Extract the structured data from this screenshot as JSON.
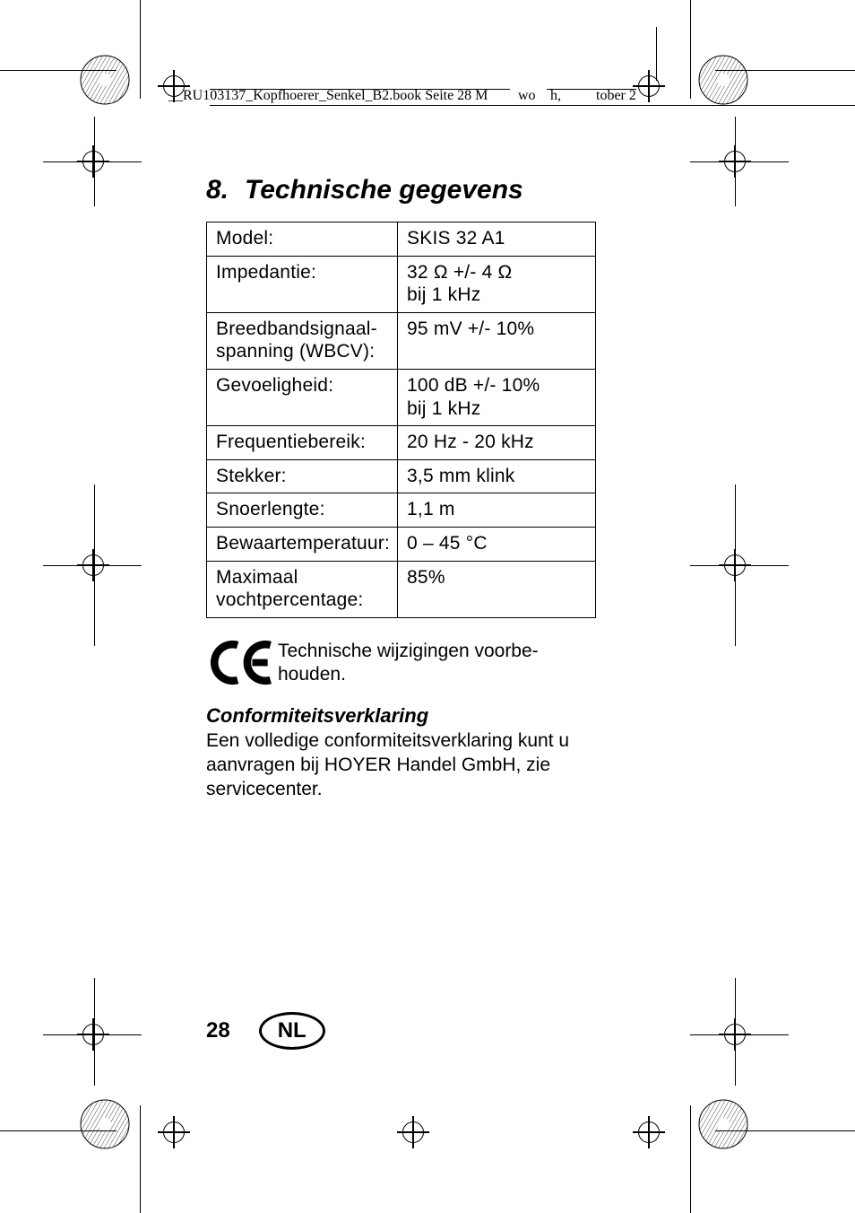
{
  "header": {
    "filename_left": "__RU103137_Kopfhoerer_Senkel_B2.book  Seite 28  M",
    "filename_mid": "wo",
    "filename_mid2": "h,",
    "filename_right": "tober 2"
  },
  "section": {
    "number": "8.",
    "title": "Technische gegevens"
  },
  "table": {
    "rows": [
      {
        "label": "Model:",
        "value": "SKIS 32 A1"
      },
      {
        "label": "Impedantie:",
        "value": "32 Ω +/- 4 Ω\nbij 1 kHz"
      },
      {
        "label": "Breedbandsignaal-\nspanning (WBCV):",
        "value": "95 mV +/- 10%"
      },
      {
        "label": "Gevoeligheid:",
        "value": "100 dB +/- 10%\nbij 1 kHz"
      },
      {
        "label": "Frequentiebereik:",
        "value": "20 Hz - 20 kHz"
      },
      {
        "label": "Stekker:",
        "value": "3,5 mm klink"
      },
      {
        "label": "Snoerlengte:",
        "value": "1,1 m"
      },
      {
        "label": "Bewaartemperatuur:",
        "value": "0 – 45 °C"
      },
      {
        "label": "Maximaal\nvochtpercentage:",
        "value": "85%"
      }
    ]
  },
  "ce_note": "Technische wijzigingen voorbe-\nhouden.",
  "conformity": {
    "heading": "Conformiteitsverklaring",
    "body": "Een volledige conformiteitsverklaring kunt u aanvragen bij HOYER Handel GmbH, zie servicecenter."
  },
  "footer": {
    "page": "28",
    "lang": "NL"
  }
}
